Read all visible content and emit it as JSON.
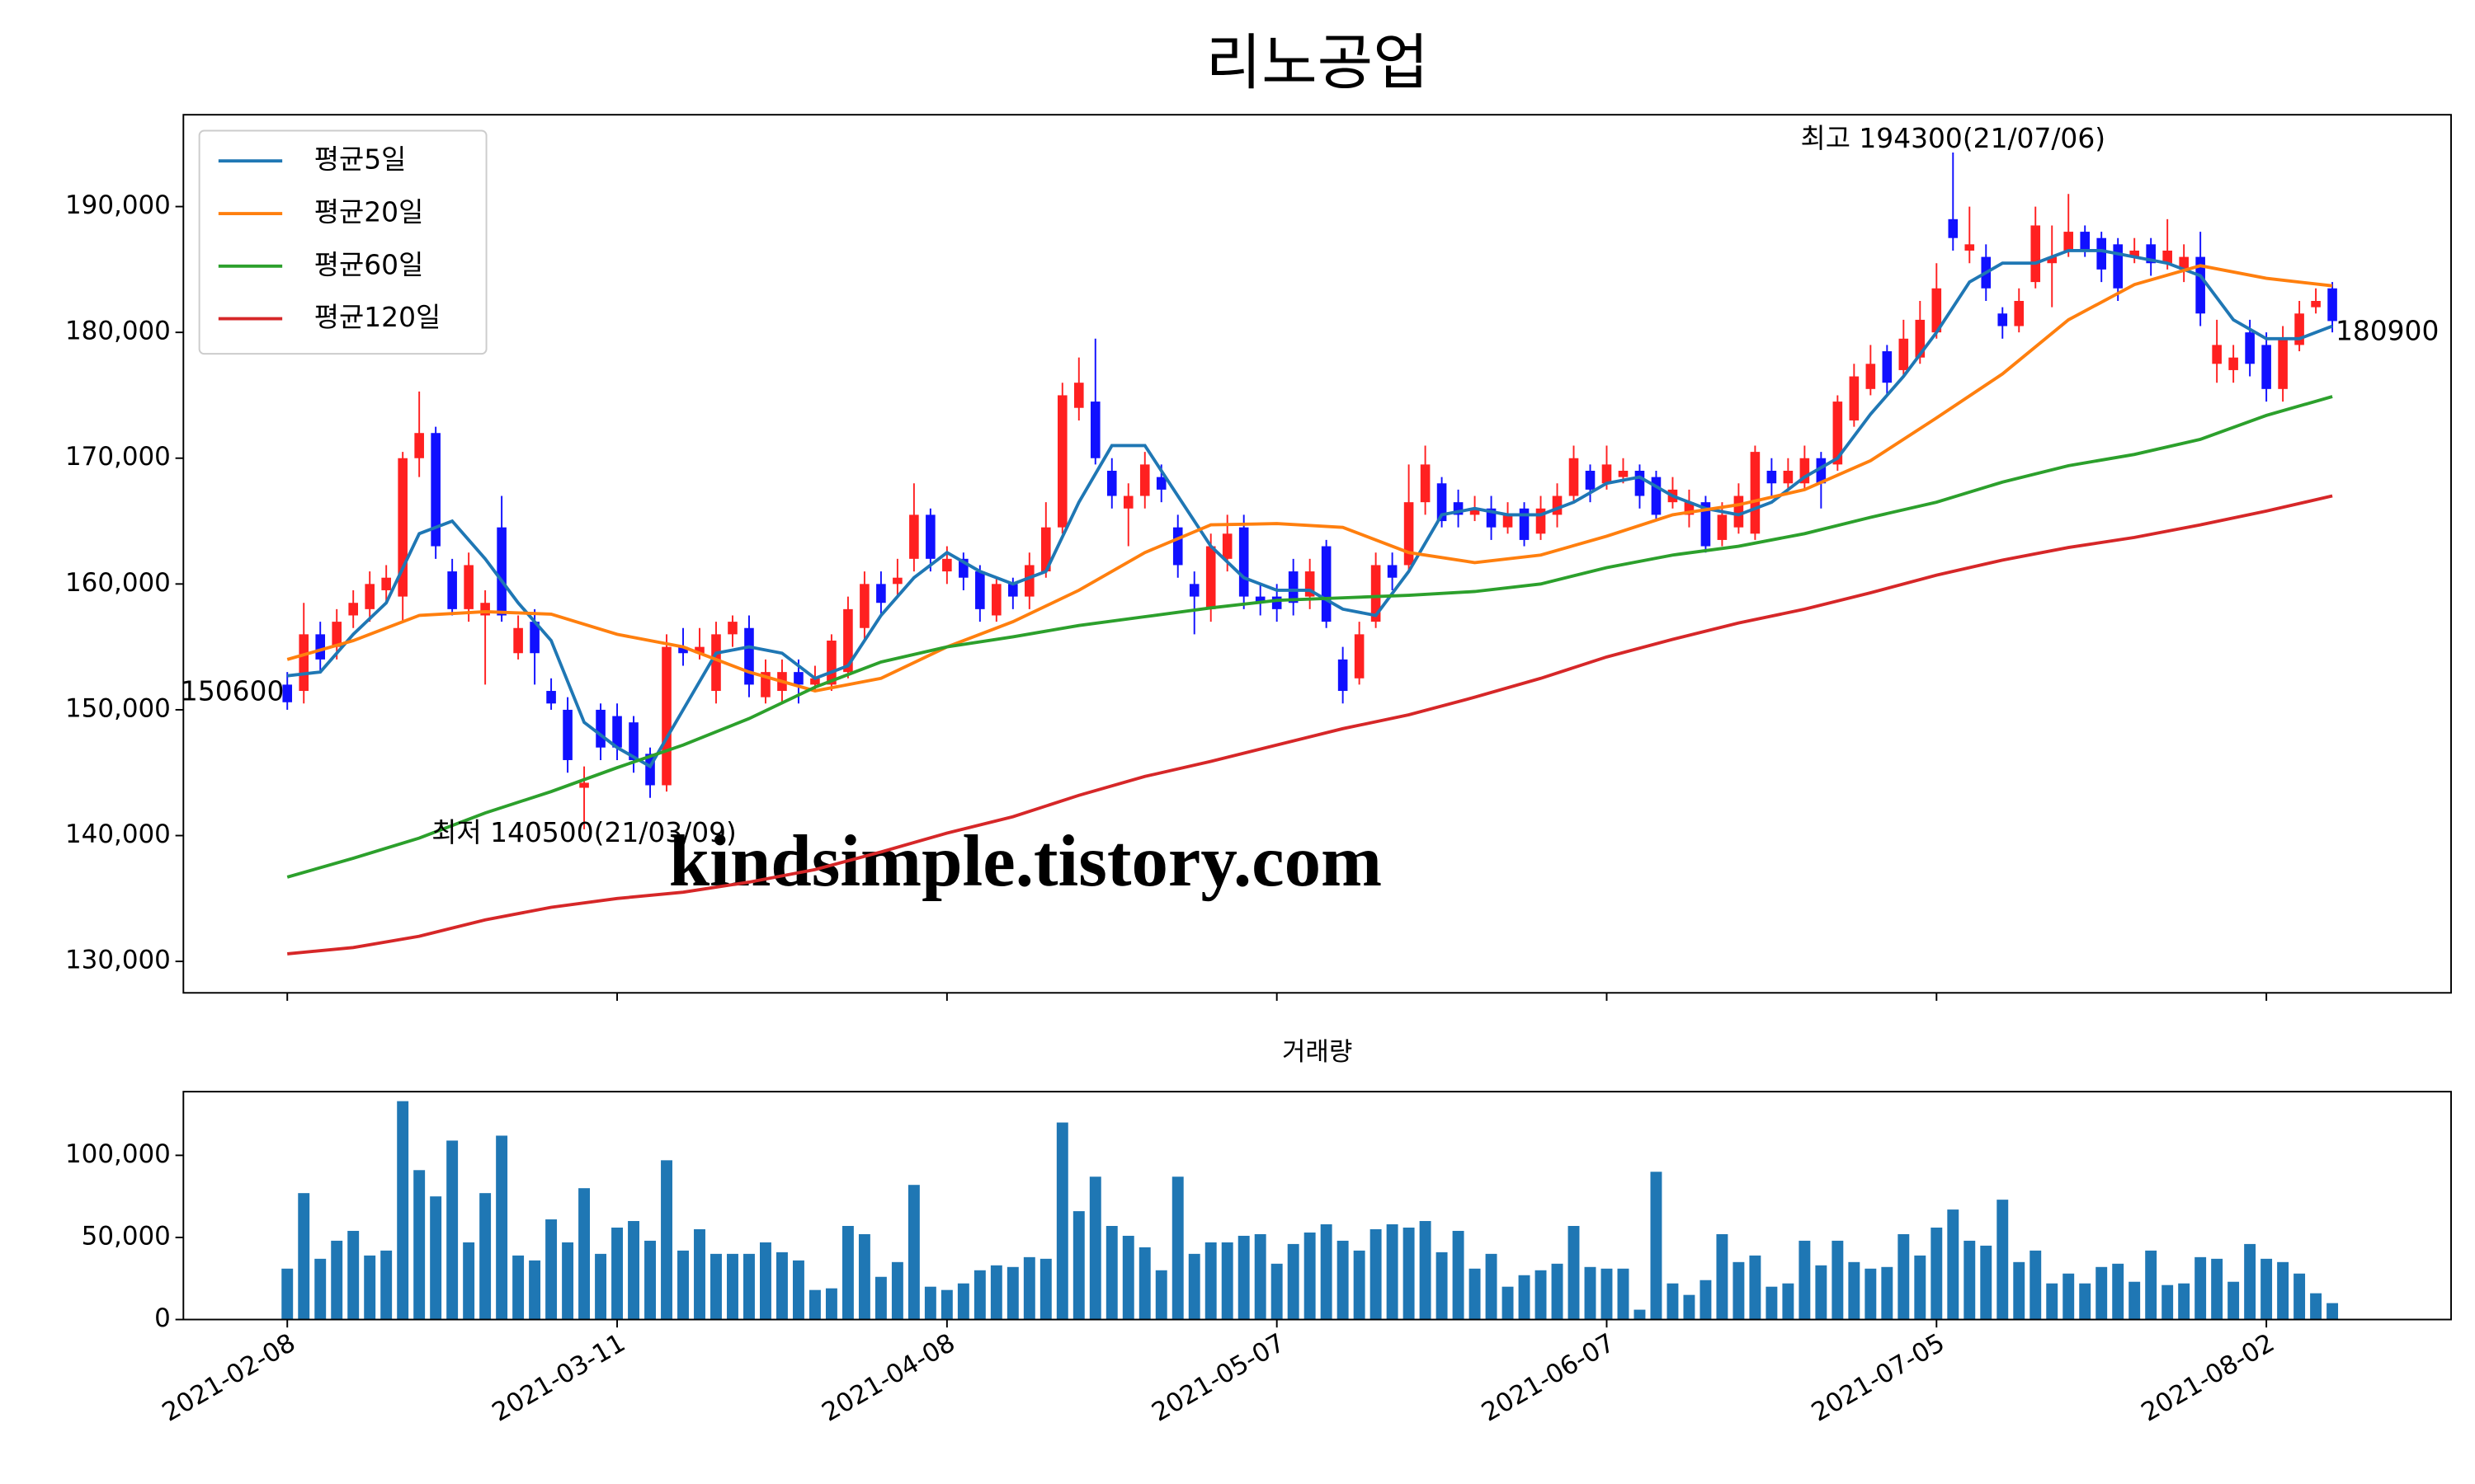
{
  "chart_data": [
    {
      "type": "candlestick",
      "title": "리노공업",
      "xlim": [
        -6.3,
        131.2
      ],
      "ylim": [
        127500,
        197300
      ],
      "yticks": [
        {
          "value": 130000,
          "label": "130,000"
        },
        {
          "value": 140000,
          "label": "140,000"
        },
        {
          "value": 150000,
          "label": "150,000"
        },
        {
          "value": 160000,
          "label": "160,000"
        },
        {
          "value": 170000,
          "label": "170,000"
        },
        {
          "value": 180000,
          "label": "180,000"
        },
        {
          "value": 190000,
          "label": "190,000"
        }
      ],
      "up_color": "#ff2020",
      "down_color": "#1010ff",
      "open": [
        152000,
        151500,
        156000,
        155000,
        157500,
        158000,
        159500,
        159000,
        170000,
        172000,
        161000,
        158000,
        157500,
        164500,
        154500,
        157000,
        151500,
        150000,
        143800,
        150000,
        149500,
        149000,
        146500,
        144000,
        155000,
        154500,
        151500,
        156000,
        156500,
        151000,
        151500,
        153000,
        152000,
        152000,
        153000,
        156500,
        160000,
        160000,
        162000,
        165500,
        161000,
        162000,
        161000,
        157500,
        160000,
        159000,
        161000,
        164500,
        174000,
        174500,
        169000,
        166000,
        167000,
        168500,
        164500,
        160000,
        158000,
        162000,
        164500,
        159000,
        159000,
        161000,
        159000,
        163000,
        154000,
        152500,
        157000,
        161500,
        161500,
        166500,
        168000,
        166500,
        165500,
        166000,
        164500,
        166000,
        164000,
        165500,
        167000,
        169000,
        168000,
        168500,
        169000,
        168500,
        166500,
        165500,
        166500,
        163500,
        164500,
        164000,
        169000,
        168000,
        168000,
        170000,
        169500,
        173000,
        175500,
        178500,
        177000,
        178000,
        180000,
        189000,
        186500,
        186000,
        181500,
        180500,
        184000,
        185500,
        186500,
        188000,
        187500,
        187000,
        186000,
        187000,
        185500,
        185000,
        186000,
        177500,
        177000,
        180000,
        179000,
        175500,
        179000,
        182000,
        183500
      ],
      "high": [
        153000,
        158500,
        157000,
        158000,
        159500,
        161000,
        161500,
        170500,
        175300,
        172500,
        162000,
        162500,
        159500,
        167000,
        157500,
        158000,
        152500,
        151000,
        145500,
        150500,
        150500,
        149500,
        147000,
        156000,
        156500,
        156500,
        157000,
        157500,
        157500,
        154000,
        154000,
        154000,
        153500,
        156000,
        159000,
        161000,
        161000,
        162000,
        168000,
        166000,
        163000,
        162500,
        161500,
        160500,
        160500,
        162500,
        166500,
        176000,
        178000,
        179500,
        170000,
        168000,
        170500,
        169500,
        165500,
        161000,
        164000,
        165500,
        165500,
        160000,
        160000,
        162000,
        162000,
        163500,
        155000,
        157000,
        162500,
        162500,
        169500,
        171000,
        168500,
        167500,
        167000,
        167000,
        166500,
        166500,
        167000,
        168000,
        171000,
        169500,
        171000,
        170000,
        169500,
        169000,
        168500,
        167500,
        167000,
        166500,
        168000,
        171000,
        170000,
        170000,
        171000,
        170500,
        175000,
        177500,
        179000,
        179000,
        181000,
        182500,
        185500,
        194300,
        190000,
        187000,
        182000,
        183500,
        190000,
        188500,
        191000,
        188500,
        188000,
        187500,
        187500,
        187500,
        189000,
        187000,
        188000,
        181000,
        179000,
        181000,
        180000,
        180500,
        182500,
        183500,
        184000
      ],
      "low": [
        150000,
        150500,
        153000,
        154000,
        156500,
        157000,
        158500,
        157000,
        168500,
        162000,
        157500,
        157000,
        152000,
        157000,
        154000,
        152000,
        150000,
        145000,
        140500,
        146000,
        146000,
        145000,
        143000,
        143500,
        153500,
        154000,
        150500,
        155000,
        151000,
        150500,
        150500,
        150500,
        151500,
        151500,
        152500,
        155500,
        157500,
        159000,
        161000,
        161000,
        160000,
        159500,
        157000,
        157000,
        158000,
        158000,
        160500,
        164000,
        173000,
        169500,
        166000,
        163000,
        166000,
        166500,
        160500,
        156000,
        157000,
        161000,
        158000,
        157500,
        157000,
        157500,
        158000,
        156500,
        150500,
        152000,
        156500,
        159500,
        161000,
        165500,
        164500,
        164500,
        165000,
        163500,
        164000,
        163000,
        163500,
        164500,
        166500,
        166500,
        167500,
        168000,
        166000,
        165000,
        166000,
        164500,
        162500,
        163000,
        164000,
        163500,
        167000,
        167500,
        167500,
        166000,
        169000,
        172500,
        175000,
        175000,
        176500,
        177500,
        179500,
        186500,
        185500,
        182500,
        179500,
        180000,
        183500,
        182000,
        186000,
        186000,
        184000,
        182500,
        185500,
        184500,
        185000,
        184000,
        180500,
        176000,
        176000,
        176500,
        174500,
        174500,
        178500,
        181500,
        180000
      ],
      "close": [
        150600,
        156000,
        154000,
        157000,
        158500,
        160000,
        160500,
        170000,
        172000,
        163000,
        158000,
        161500,
        158500,
        157500,
        156500,
        154500,
        150500,
        146000,
        144200,
        147000,
        147000,
        146000,
        144000,
        155000,
        154500,
        155000,
        156000,
        157000,
        152000,
        153000,
        153000,
        152000,
        152500,
        155500,
        158000,
        160000,
        158500,
        160500,
        165500,
        162000,
        162000,
        160500,
        158000,
        160000,
        159000,
        161500,
        164500,
        175000,
        176000,
        170000,
        167000,
        167000,
        169500,
        167500,
        161500,
        159000,
        163000,
        164000,
        159000,
        158500,
        158000,
        158500,
        161000,
        157000,
        151500,
        156000,
        161500,
        160500,
        166500,
        169500,
        165000,
        165500,
        166000,
        164500,
        165500,
        163500,
        166000,
        167000,
        170000,
        167500,
        169500,
        169000,
        167000,
        165500,
        167500,
        166500,
        163000,
        165500,
        167000,
        170500,
        168000,
        169000,
        170000,
        168000,
        174500,
        176500,
        177500,
        176000,
        179500,
        181000,
        183500,
        187500,
        187000,
        183500,
        180500,
        182500,
        188500,
        186000,
        188000,
        186500,
        185000,
        183500,
        186500,
        185500,
        186500,
        186000,
        181500,
        179000,
        178000,
        177500,
        175500,
        179500,
        181500,
        182500,
        180900
      ],
      "series": [
        {
          "name": "평균5일",
          "color": "#1f77b4",
          "x": [
            0,
            2,
            4,
            6,
            8,
            10,
            12,
            14,
            16,
            18,
            20,
            22,
            24,
            26,
            28,
            30,
            32,
            34,
            36,
            38,
            40,
            42,
            44,
            46,
            48,
            50,
            52,
            54,
            56,
            58,
            60,
            62,
            64,
            66,
            68,
            70,
            72,
            74,
            76,
            78,
            80,
            82,
            84,
            86,
            88,
            90,
            92,
            94,
            96,
            98,
            100,
            102,
            104,
            106,
            108,
            110,
            112,
            114,
            116,
            118,
            120,
            122,
            124
          ],
          "values": [
            152700,
            153000,
            156000,
            158500,
            164000,
            165000,
            162000,
            158500,
            155500,
            149000,
            147000,
            145500,
            150000,
            154500,
            155000,
            154500,
            152500,
            153500,
            157500,
            160500,
            162500,
            161000,
            160000,
            161000,
            166500,
            171000,
            171000,
            167000,
            163000,
            160500,
            159500,
            159500,
            158000,
            157500,
            161000,
            165500,
            166000,
            165500,
            165500,
            166500,
            168000,
            168500,
            167000,
            166000,
            165500,
            166500,
            168500,
            170000,
            173500,
            176500,
            180000,
            184000,
            185500,
            185500,
            186500,
            186500,
            186000,
            185500,
            184500,
            181000,
            179500,
            179500,
            180500
          ]
        },
        {
          "name": "평균20일",
          "color": "#ff7f0e",
          "x": [
            0,
            4,
            8,
            12,
            16,
            20,
            24,
            28,
            32,
            36,
            40,
            44,
            48,
            52,
            56,
            60,
            64,
            68,
            72,
            76,
            80,
            84,
            88,
            92,
            96,
            100,
            104,
            108,
            112,
            116,
            120,
            124
          ],
          "values": [
            154000,
            155500,
            157500,
            157800,
            157600,
            156000,
            155000,
            153000,
            151500,
            152500,
            155000,
            157000,
            159500,
            162500,
            164700,
            164800,
            164500,
            162500,
            161700,
            162300,
            163800,
            165500,
            166300,
            167500,
            169800,
            173200,
            176700,
            181000,
            183800,
            185300,
            184300,
            183700
          ]
        },
        {
          "name": "평균60일",
          "color": "#2ca02c",
          "x": [
            0,
            4,
            8,
            12,
            16,
            20,
            24,
            28,
            32,
            36,
            40,
            44,
            48,
            52,
            56,
            60,
            64,
            68,
            72,
            76,
            80,
            84,
            88,
            92,
            96,
            100,
            104,
            108,
            112,
            116,
            120,
            124
          ],
          "values": [
            136700,
            138200,
            139800,
            141800,
            143500,
            145400,
            147200,
            149300,
            151800,
            153800,
            155000,
            155800,
            156700,
            157400,
            158100,
            158700,
            158900,
            159100,
            159400,
            160000,
            161300,
            162300,
            163000,
            164000,
            165300,
            166500,
            168100,
            169400,
            170300,
            171500,
            173400,
            174900
          ]
        },
        {
          "name": "평균120일",
          "color": "#d62728",
          "x": [
            0,
            4,
            8,
            12,
            16,
            20,
            24,
            28,
            32,
            36,
            40,
            44,
            48,
            52,
            56,
            60,
            64,
            68,
            72,
            76,
            80,
            84,
            88,
            92,
            96,
            100,
            104,
            108,
            112,
            116,
            120,
            124
          ],
          "values": [
            130600,
            131100,
            132000,
            133300,
            134300,
            135000,
            135500,
            136300,
            137300,
            138700,
            140200,
            141500,
            143200,
            144700,
            145900,
            147200,
            148500,
            149600,
            151000,
            152500,
            154200,
            155600,
            156900,
            158000,
            159300,
            160700,
            161900,
            162900,
            163700,
            164700,
            165800,
            167000
          ]
        }
      ],
      "legend": "upper left",
      "high_label": "최고 194300(21/07/06)",
      "high_label_color": "#ff0000",
      "low_label": "최저 140500(21/03/09)",
      "low_label_color": "#0000ff",
      "watermark": "kindsimple.tistory.com",
      "watermark_color": "#e2a0ec"
    },
    {
      "type": "bar",
      "title": "거래량",
      "color": "#1f77b4",
      "xlim": [
        -6.3,
        131.2
      ],
      "xticks": [
        {
          "value": 0,
          "label": "2021-02-08"
        },
        {
          "value": 20,
          "label": "2021-03-11"
        },
        {
          "value": 40,
          "label": "2021-04-08"
        },
        {
          "value": 60,
          "label": "2021-05-07"
        },
        {
          "value": 80,
          "label": "2021-06-07"
        },
        {
          "value": 100,
          "label": "2021-07-05"
        },
        {
          "value": 120,
          "label": "2021-08-02"
        }
      ],
      "ylim": [
        0,
        138800
      ],
      "yticks": [
        0,
        {
          "value": 50000,
          "label": "50,000"
        },
        {
          "value": 100000,
          "label": "100,000"
        }
      ],
      "values": [
        31000,
        77000,
        37000,
        48000,
        54000,
        39000,
        42000,
        133000,
        91000,
        75000,
        109000,
        47000,
        77000,
        112000,
        39000,
        36000,
        61000,
        47000,
        80000,
        40000,
        56000,
        60000,
        48000,
        97000,
        42000,
        55000,
        40000,
        40000,
        40000,
        47000,
        41000,
        36000,
        18000,
        19000,
        57000,
        52000,
        26000,
        35000,
        82000,
        20000,
        18000,
        22000,
        30000,
        33000,
        32000,
        38000,
        37000,
        120000,
        66000,
        87000,
        57000,
        51000,
        44000,
        30000,
        87000,
        40000,
        47000,
        47000,
        51000,
        52000,
        34000,
        46000,
        53000,
        58000,
        48000,
        42000,
        55000,
        58000,
        56000,
        60000,
        41000,
        54000,
        31000,
        40000,
        20000,
        27000,
        30000,
        34000,
        57000,
        32000,
        31000,
        31000,
        6000,
        90000,
        22000,
        15000,
        24000,
        52000,
        35000,
        39000,
        20000,
        22000,
        48000,
        33000,
        48000,
        35000,
        31000,
        32000,
        52000,
        39000,
        56000,
        67000,
        48000,
        45000,
        73000,
        35000,
        42000,
        22000,
        28000,
        22000,
        32000,
        34000,
        23000,
        42000,
        21000,
        22000,
        38000,
        37000,
        23000,
        46000,
        37000,
        35000,
        28000,
        16000,
        10000
      ]
    }
  ]
}
